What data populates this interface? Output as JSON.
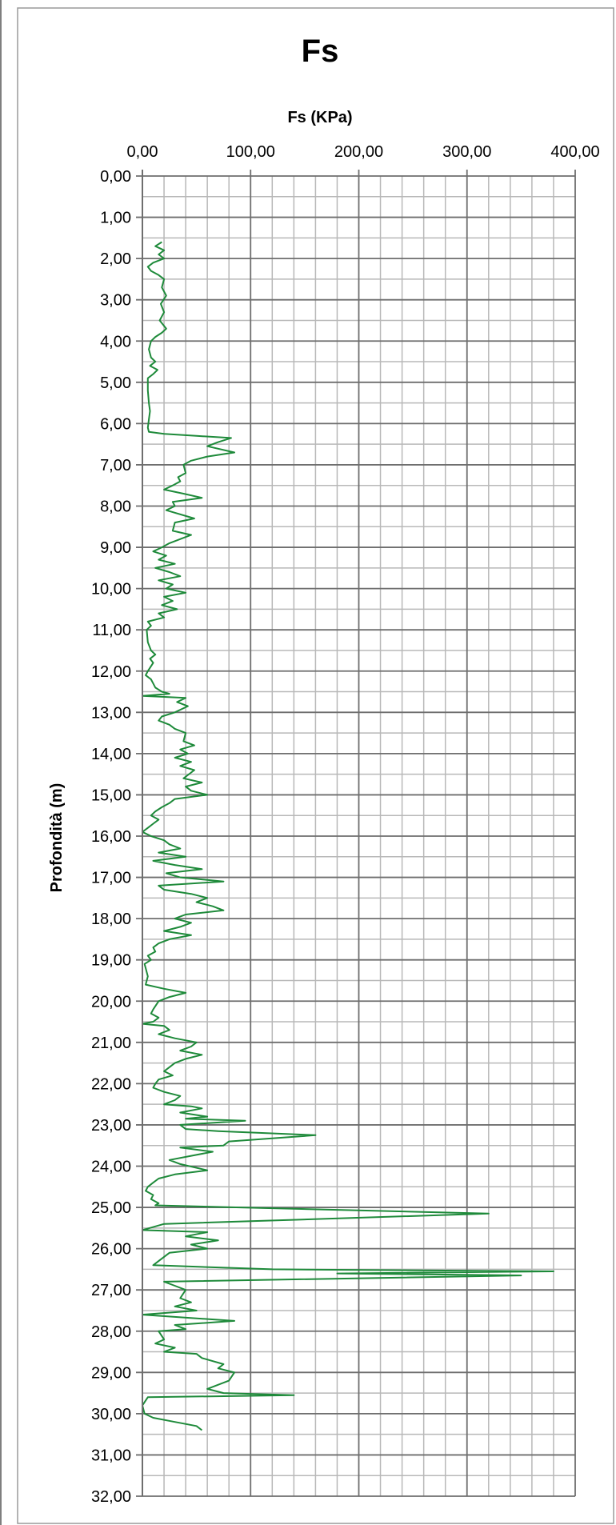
{
  "chart_data": {
    "type": "line",
    "title": "Fs",
    "xlabel": "Fs  (KPa)",
    "ylabel": "Profondità (m)",
    "x_axis_position": "top",
    "y_axis_inverted": true,
    "xlim": [
      0,
      400
    ],
    "ylim": [
      0,
      32
    ],
    "x_ticks": [
      "0,00",
      "100,00",
      "200,00",
      "300,00",
      "400,00"
    ],
    "y_ticks": [
      "0,00",
      "1,00",
      "2,00",
      "3,00",
      "4,00",
      "5,00",
      "6,00",
      "7,00",
      "8,00",
      "9,00",
      "10,00",
      "11,00",
      "12,00",
      "13,00",
      "14,00",
      "15,00",
      "16,00",
      "17,00",
      "18,00",
      "19,00",
      "20,00",
      "21,00",
      "22,00",
      "23,00",
      "24,00",
      "25,00",
      "26,00",
      "27,00",
      "28,00",
      "29,00",
      "30,00",
      "31,00",
      "32,00"
    ],
    "grid": true,
    "series_color": "#1e8a3a",
    "series": [
      {
        "points": [
          [
            18,
            1.6
          ],
          [
            12,
            1.7
          ],
          [
            20,
            1.8
          ],
          [
            15,
            1.9
          ],
          [
            20,
            2.0
          ],
          [
            10,
            2.1
          ],
          [
            5,
            2.2
          ],
          [
            8,
            2.3
          ],
          [
            15,
            2.4
          ],
          [
            20,
            2.5
          ],
          [
            18,
            2.7
          ],
          [
            22,
            2.9
          ],
          [
            17,
            3.1
          ],
          [
            20,
            3.3
          ],
          [
            16,
            3.5
          ],
          [
            22,
            3.7
          ],
          [
            18,
            3.8
          ],
          [
            12,
            3.9
          ],
          [
            8,
            4.0
          ],
          [
            6,
            4.2
          ],
          [
            8,
            4.4
          ],
          [
            12,
            4.5
          ],
          [
            7,
            4.6
          ],
          [
            14,
            4.7
          ],
          [
            10,
            4.8
          ],
          [
            5,
            4.9
          ],
          [
            5,
            5.2
          ],
          [
            6,
            5.5
          ],
          [
            7,
            5.7
          ],
          [
            6,
            5.9
          ],
          [
            5,
            6.1
          ],
          [
            6,
            6.2
          ],
          [
            20,
            6.25
          ],
          [
            50,
            6.3
          ],
          [
            82,
            6.35
          ],
          [
            70,
            6.45
          ],
          [
            60,
            6.55
          ],
          [
            85,
            6.7
          ],
          [
            60,
            6.8
          ],
          [
            45,
            6.9
          ],
          [
            38,
            7.0
          ],
          [
            40,
            7.2
          ],
          [
            33,
            7.3
          ],
          [
            35,
            7.4
          ],
          [
            28,
            7.5
          ],
          [
            20,
            7.6
          ],
          [
            38,
            7.7
          ],
          [
            55,
            7.8
          ],
          [
            28,
            7.9
          ],
          [
            30,
            8.0
          ],
          [
            22,
            8.1
          ],
          [
            48,
            8.3
          ],
          [
            30,
            8.4
          ],
          [
            28,
            8.6
          ],
          [
            45,
            8.7
          ],
          [
            25,
            8.9
          ],
          [
            18,
            9.0
          ],
          [
            10,
            9.1
          ],
          [
            22,
            9.2
          ],
          [
            15,
            9.3
          ],
          [
            30,
            9.4
          ],
          [
            12,
            9.5
          ],
          [
            25,
            9.6
          ],
          [
            35,
            9.7
          ],
          [
            15,
            9.8
          ],
          [
            28,
            9.9
          ],
          [
            22,
            10.0
          ],
          [
            40,
            10.1
          ],
          [
            20,
            10.2
          ],
          [
            28,
            10.3
          ],
          [
            18,
            10.4
          ],
          [
            32,
            10.5
          ],
          [
            15,
            10.6
          ],
          [
            20,
            10.7
          ],
          [
            5,
            10.8
          ],
          [
            8,
            10.9
          ],
          [
            4,
            11.0
          ],
          [
            5,
            11.3
          ],
          [
            8,
            11.5
          ],
          [
            12,
            11.6
          ],
          [
            7,
            11.7
          ],
          [
            10,
            11.8
          ],
          [
            5,
            12.0
          ],
          [
            3,
            12.1
          ],
          [
            8,
            12.2
          ],
          [
            10,
            12.3
          ],
          [
            12,
            12.4
          ],
          [
            18,
            12.5
          ],
          [
            25,
            12.55
          ],
          [
            0,
            12.6
          ],
          [
            40,
            12.65
          ],
          [
            32,
            12.75
          ],
          [
            42,
            12.85
          ],
          [
            30,
            13.0
          ],
          [
            18,
            13.1
          ],
          [
            15,
            13.2
          ],
          [
            25,
            13.3
          ],
          [
            30,
            13.4
          ],
          [
            40,
            13.5
          ],
          [
            38,
            13.7
          ],
          [
            48,
            13.8
          ],
          [
            35,
            13.9
          ],
          [
            42,
            14.0
          ],
          [
            30,
            14.1
          ],
          [
            45,
            14.2
          ],
          [
            35,
            14.3
          ],
          [
            48,
            14.4
          ],
          [
            38,
            14.6
          ],
          [
            55,
            14.7
          ],
          [
            40,
            14.8
          ],
          [
            45,
            14.9
          ],
          [
            60,
            15.0
          ],
          [
            30,
            15.1
          ],
          [
            25,
            15.2
          ],
          [
            18,
            15.3
          ],
          [
            12,
            15.4
          ],
          [
            8,
            15.5
          ],
          [
            15,
            15.6
          ],
          [
            10,
            15.7
          ],
          [
            5,
            15.8
          ],
          [
            0,
            15.9
          ],
          [
            8,
            16.0
          ],
          [
            20,
            16.1
          ],
          [
            25,
            16.2
          ],
          [
            35,
            16.3
          ],
          [
            15,
            16.4
          ],
          [
            40,
            16.5
          ],
          [
            10,
            16.6
          ],
          [
            30,
            16.7
          ],
          [
            55,
            16.8
          ],
          [
            22,
            16.9
          ],
          [
            35,
            17.0
          ],
          [
            75,
            17.1
          ],
          [
            15,
            17.2
          ],
          [
            20,
            17.3
          ],
          [
            45,
            17.4
          ],
          [
            60,
            17.5
          ],
          [
            50,
            17.6
          ],
          [
            65,
            17.7
          ],
          [
            75,
            17.8
          ],
          [
            40,
            17.9
          ],
          [
            30,
            18.0
          ],
          [
            45,
            18.1
          ],
          [
            35,
            18.2
          ],
          [
            20,
            18.3
          ],
          [
            45,
            18.4
          ],
          [
            25,
            18.5
          ],
          [
            15,
            18.6
          ],
          [
            10,
            18.7
          ],
          [
            12,
            18.8
          ],
          [
            5,
            18.9
          ],
          [
            8,
            19.0
          ],
          [
            2,
            19.1
          ],
          [
            5,
            19.4
          ],
          [
            3,
            19.6
          ],
          [
            20,
            19.7
          ],
          [
            40,
            19.8
          ],
          [
            25,
            19.9
          ],
          [
            15,
            20.0
          ],
          [
            10,
            20.2
          ],
          [
            8,
            20.3
          ],
          [
            15,
            20.4
          ],
          [
            10,
            20.5
          ],
          [
            0,
            20.55
          ],
          [
            20,
            20.6
          ],
          [
            25,
            20.7
          ],
          [
            15,
            20.8
          ],
          [
            30,
            20.9
          ],
          [
            50,
            21.0
          ],
          [
            45,
            21.1
          ],
          [
            35,
            21.2
          ],
          [
            55,
            21.3
          ],
          [
            40,
            21.4
          ],
          [
            30,
            21.5
          ],
          [
            25,
            21.6
          ],
          [
            20,
            21.7
          ],
          [
            28,
            21.8
          ],
          [
            15,
            21.9
          ],
          [
            12,
            22.0
          ],
          [
            10,
            22.1
          ],
          [
            20,
            22.2
          ],
          [
            35,
            22.3
          ],
          [
            30,
            22.4
          ],
          [
            20,
            22.5
          ],
          [
            45,
            22.55
          ],
          [
            55,
            22.6
          ],
          [
            35,
            22.7
          ],
          [
            60,
            22.8
          ],
          [
            40,
            22.85
          ],
          [
            95,
            22.9
          ],
          [
            35,
            23.0
          ],
          [
            40,
            23.1
          ],
          [
            70,
            23.15
          ],
          [
            160,
            23.25
          ],
          [
            80,
            23.4
          ],
          [
            75,
            23.5
          ],
          [
            35,
            23.55
          ],
          [
            65,
            23.65
          ],
          [
            45,
            23.75
          ],
          [
            25,
            23.85
          ],
          [
            35,
            23.95
          ],
          [
            60,
            24.1
          ],
          [
            30,
            24.2
          ],
          [
            15,
            24.3
          ],
          [
            10,
            24.4
          ],
          [
            5,
            24.5
          ],
          [
            3,
            24.6
          ],
          [
            10,
            24.7
          ],
          [
            8,
            24.8
          ],
          [
            15,
            24.9
          ],
          [
            12,
            24.95
          ],
          [
            320,
            25.15
          ],
          [
            20,
            25.4
          ],
          [
            0,
            25.55
          ],
          [
            60,
            25.6
          ],
          [
            40,
            25.7
          ],
          [
            70,
            25.8
          ],
          [
            45,
            25.9
          ],
          [
            60,
            26.0
          ],
          [
            25,
            26.1
          ],
          [
            15,
            26.3
          ],
          [
            10,
            26.4
          ],
          [
            120,
            26.5
          ],
          [
            380,
            26.55
          ],
          [
            180,
            26.6
          ],
          [
            350,
            26.65
          ],
          [
            20,
            26.8
          ],
          [
            30,
            26.9
          ],
          [
            40,
            27.0
          ],
          [
            35,
            27.2
          ],
          [
            45,
            27.3
          ],
          [
            30,
            27.4
          ],
          [
            50,
            27.5
          ],
          [
            0,
            27.6
          ],
          [
            85,
            27.75
          ],
          [
            30,
            27.85
          ],
          [
            40,
            27.95
          ],
          [
            15,
            28.0
          ],
          [
            20,
            28.2
          ],
          [
            12,
            28.3
          ],
          [
            30,
            28.4
          ],
          [
            20,
            28.5
          ],
          [
            50,
            28.55
          ],
          [
            55,
            28.65
          ],
          [
            75,
            28.8
          ],
          [
            70,
            28.9
          ],
          [
            85,
            29.0
          ],
          [
            80,
            29.2
          ],
          [
            60,
            29.4
          ],
          [
            75,
            29.5
          ],
          [
            140,
            29.55
          ],
          [
            5,
            29.6
          ],
          [
            0,
            29.8
          ],
          [
            2,
            30.0
          ],
          [
            10,
            30.1
          ],
          [
            30,
            30.2
          ],
          [
            50,
            30.3
          ],
          [
            55,
            30.4
          ]
        ]
      }
    ]
  }
}
